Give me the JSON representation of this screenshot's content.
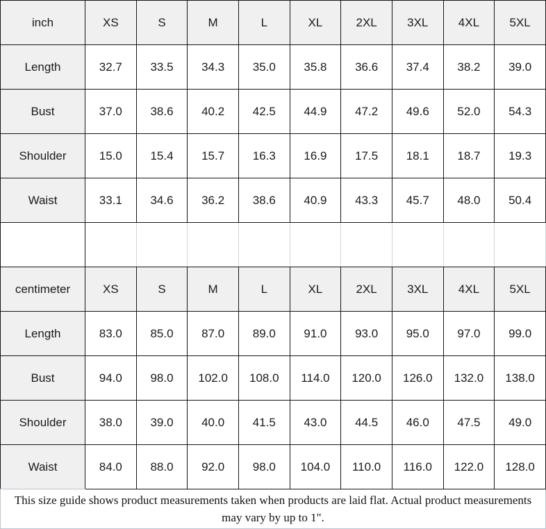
{
  "sections": [
    {
      "unit_label": "inch",
      "sizes": [
        "XS",
        "S",
        "M",
        "L",
        "XL",
        "2XL",
        "3XL",
        "4XL",
        "5XL"
      ],
      "rows": [
        {
          "label": "Length",
          "values": [
            "32.7",
            "33.5",
            "34.3",
            "35.0",
            "35.8",
            "36.6",
            "37.4",
            "38.2",
            "39.0"
          ]
        },
        {
          "label": "Bust",
          "values": [
            "37.0",
            "38.6",
            "40.2",
            "42.5",
            "44.9",
            "47.2",
            "49.6",
            "52.0",
            "54.3"
          ]
        },
        {
          "label": "Shoulder",
          "values": [
            "15.0",
            "15.4",
            "15.7",
            "16.3",
            "16.9",
            "17.5",
            "18.1",
            "18.7",
            "19.3"
          ]
        },
        {
          "label": "Waist",
          "values": [
            "33.1",
            "34.6",
            "36.2",
            "38.6",
            "40.9",
            "43.3",
            "45.7",
            "48.0",
            "50.4"
          ]
        }
      ]
    },
    {
      "unit_label": "centimeter",
      "sizes": [
        "XS",
        "S",
        "M",
        "L",
        "XL",
        "2XL",
        "3XL",
        "4XL",
        "5XL"
      ],
      "rows": [
        {
          "label": "Length",
          "values": [
            "83.0",
            "85.0",
            "87.0",
            "89.0",
            "91.0",
            "93.0",
            "95.0",
            "97.0",
            "99.0"
          ]
        },
        {
          "label": "Bust",
          "values": [
            "94.0",
            "98.0",
            "102.0",
            "108.0",
            "114.0",
            "120.0",
            "126.0",
            "132.0",
            "138.0"
          ]
        },
        {
          "label": "Shoulder",
          "values": [
            "38.0",
            "39.0",
            "40.0",
            "41.5",
            "43.0",
            "44.5",
            "46.0",
            "47.5",
            "49.0"
          ]
        },
        {
          "label": "Waist",
          "values": [
            "84.0",
            "88.0",
            "92.0",
            "98.0",
            "104.0",
            "110.0",
            "116.0",
            "122.0",
            "128.0"
          ]
        }
      ]
    }
  ],
  "footer_note": "This size guide shows product measurements taken when products are laid flat. Actual product measurements may vary by up to 1\".",
  "colors": {
    "header_bg": "#f0f0f0",
    "border_dark": "#161616",
    "spacer_divider": "#ccd6df",
    "footer_border": "#b7c6d5"
  }
}
